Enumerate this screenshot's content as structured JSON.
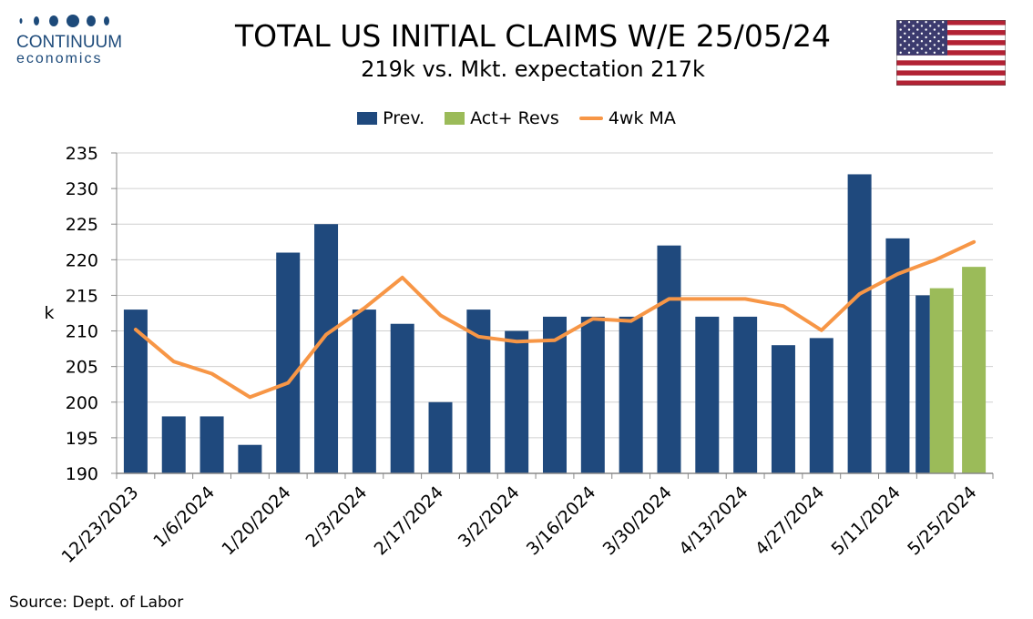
{
  "header": {
    "logo_name": "CONTINUUM",
    "logo_sub": "economics",
    "title": "TOTAL US INITIAL CLAIMS W/E 25/05/24",
    "subtitle": "219k vs. Mkt. expectation 217k"
  },
  "footer": {
    "source": "Source: Dept. of Labor"
  },
  "colors": {
    "prev": "#1f497d",
    "act": "#9bbb59",
    "ma": "#f79646",
    "logo": "#1d4a7a"
  },
  "chart_data": {
    "type": "bar",
    "title": "TOTAL US INITIAL CLAIMS W/E 25/05/24",
    "subtitle": "219k vs. Mkt. expectation 217k",
    "ylabel": "k",
    "xlabel": "",
    "ylim": [
      190,
      235
    ],
    "yticks": [
      190,
      195,
      200,
      205,
      210,
      215,
      220,
      225,
      230,
      235
    ],
    "grid": "horizontal",
    "legend_position": "top-center",
    "x_tick_labels": [
      "12/23/2023",
      "1/6/2024",
      "1/20/2024",
      "2/3/2024",
      "2/17/2024",
      "3/2/2024",
      "3/16/2024",
      "3/30/2024",
      "4/13/2024",
      "4/27/2024",
      "5/11/2024",
      "5/25/2024"
    ],
    "categories": [
      "12/23/2023",
      "12/30/2023",
      "1/6/2024",
      "1/13/2024",
      "1/20/2024",
      "1/27/2024",
      "2/3/2024",
      "2/10/2024",
      "2/17/2024",
      "2/24/2024",
      "3/2/2024",
      "3/9/2024",
      "3/16/2024",
      "3/23/2024",
      "3/30/2024",
      "4/6/2024",
      "4/13/2024",
      "4/20/2024",
      "4/27/2024",
      "5/4/2024",
      "5/11/2024",
      "5/18/2024",
      "5/25/2024"
    ],
    "series": [
      {
        "name": "Prev.",
        "type": "bar",
        "values": [
          213,
          198,
          198,
          194,
          221,
          225,
          213,
          211,
          200,
          213,
          210,
          212,
          212,
          212,
          222,
          212,
          212,
          208,
          209,
          232,
          223,
          215,
          null
        ]
      },
      {
        "name": "Act+ Revs",
        "type": "bar",
        "values": [
          null,
          null,
          null,
          null,
          null,
          null,
          null,
          null,
          null,
          null,
          null,
          null,
          null,
          null,
          null,
          null,
          null,
          null,
          null,
          null,
          null,
          216,
          219
        ]
      },
      {
        "name": "4wk MA",
        "type": "line",
        "values": [
          210.2,
          205.7,
          204.0,
          200.7,
          202.7,
          209.5,
          213.2,
          217.5,
          212.2,
          209.2,
          208.5,
          208.7,
          211.7,
          211.4,
          214.5,
          214.5,
          214.5,
          213.5,
          210.1,
          215.2,
          218.0,
          220.0,
          222.5
        ]
      }
    ]
  }
}
